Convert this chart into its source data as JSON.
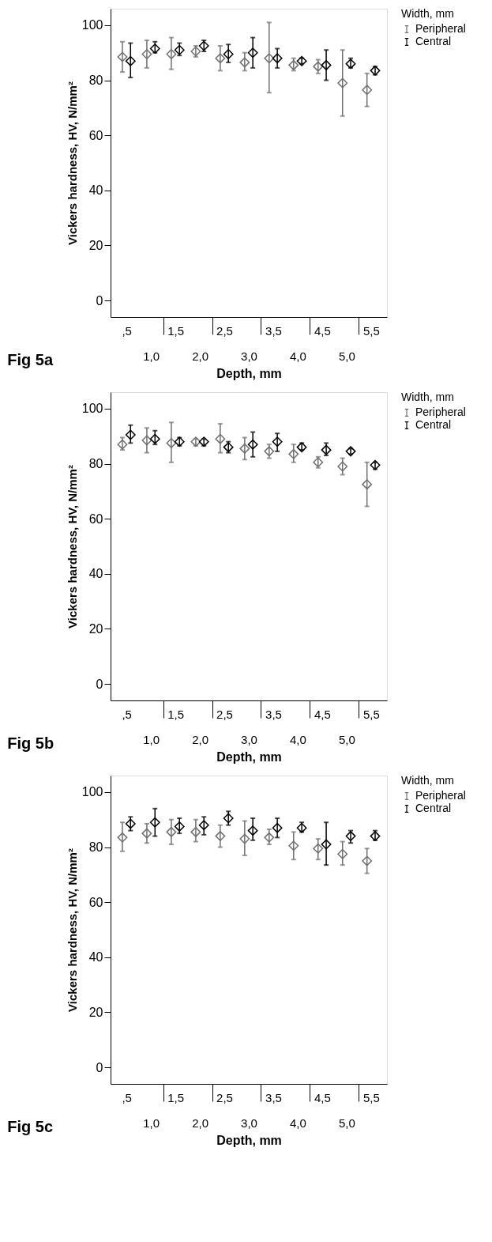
{
  "chart_data": [
    {
      "type": "scatter",
      "title": "Fig 5a",
      "xlabel": "Depth, mm",
      "ylabel": "Vickers hardness, HV, N/mm²",
      "legend_title": "Width, mm",
      "legend": "top right",
      "grid": false,
      "marker": "diamond",
      "categories": [
        ",5",
        "1,0",
        "1,5",
        "2,0",
        "2,5",
        "3,0",
        "3,5",
        "4,0",
        "4,5",
        "5,0",
        "5,5"
      ],
      "ylim": [
        -6,
        106
      ],
      "yticks": [
        0,
        20,
        40,
        60,
        80,
        100
      ],
      "series": [
        {
          "name": "Peripheral",
          "color": "#707070",
          "values": [
            88.5,
            89.5,
            89.5,
            90.5,
            88,
            86.5,
            88,
            85.5,
            85,
            79,
            76.5
          ],
          "errors": [
            [
              83,
              94
            ],
            [
              84.5,
              94.5
            ],
            [
              84,
              95.5
            ],
            [
              88.5,
              92.5
            ],
            [
              83.5,
              92.5
            ],
            [
              83.5,
              90
            ],
            [
              75.5,
              101
            ],
            [
              83.5,
              88
            ],
            [
              82.5,
              87.5
            ],
            [
              67,
              91
            ],
            [
              70.5,
              82.5
            ]
          ]
        },
        {
          "name": "Central",
          "color": "#000000",
          "values": [
            87,
            91.5,
            91,
            92.5,
            89.5,
            90,
            88,
            87,
            85.5,
            86,
            83.5
          ],
          "errors": [
            [
              81,
              93.5
            ],
            [
              90,
              94
            ],
            [
              89,
              93.5
            ],
            [
              90.5,
              94.5
            ],
            [
              86.5,
              93
            ],
            [
              84.5,
              95.5
            ],
            [
              84.5,
              91.5
            ],
            [
              86,
              88
            ],
            [
              80,
              91
            ],
            [
              84.5,
              88
            ],
            [
              82,
              85
            ]
          ]
        }
      ]
    },
    {
      "type": "scatter",
      "title": "Fig 5b",
      "xlabel": "Depth, mm",
      "ylabel": "Vickers hardness, HV, N/mm²",
      "legend_title": "Width, mm",
      "legend": "top right",
      "grid": false,
      "marker": "diamond",
      "categories": [
        ",5",
        "1,0",
        "1,5",
        "2,0",
        "2,5",
        "3,0",
        "3,5",
        "4,0",
        "4,5",
        "5,0",
        "5,5"
      ],
      "ylim": [
        -6,
        106
      ],
      "yticks": [
        0,
        20,
        40,
        60,
        80,
        100
      ],
      "series": [
        {
          "name": "Peripheral",
          "color": "#707070",
          "values": [
            87,
            88.5,
            87.5,
            88,
            89,
            85.5,
            84.5,
            83.5,
            80.5,
            79,
            72.5
          ],
          "errors": [
            [
              85,
              89.5
            ],
            [
              84,
              93
            ],
            [
              80.5,
              95
            ],
            [
              86.5,
              89
            ],
            [
              84,
              94.5
            ],
            [
              81.5,
              89.5
            ],
            [
              82,
              87
            ],
            [
              80.5,
              87
            ],
            [
              78.5,
              82.5
            ],
            [
              76,
              82
            ],
            [
              64.5,
              80.5
            ]
          ]
        },
        {
          "name": "Central",
          "color": "#000000",
          "values": [
            90.5,
            89,
            88,
            88,
            86,
            87,
            88,
            86,
            85,
            84.5,
            79.5
          ],
          "errors": [
            [
              87.5,
              94
            ],
            [
              87,
              92
            ],
            [
              86.5,
              89.5
            ],
            [
              86.5,
              89
            ],
            [
              84,
              88
            ],
            [
              82.5,
              91.5
            ],
            [
              84.5,
              91
            ],
            [
              85,
              87.5
            ],
            [
              83,
              87.5
            ],
            [
              83.5,
              85.5
            ],
            [
              78,
              80.5
            ]
          ]
        }
      ]
    },
    {
      "type": "scatter",
      "title": "Fig 5c",
      "xlabel": "Depth, mm",
      "ylabel": "Vickers hardness, HV, N/mm²",
      "legend_title": "Width, mm",
      "legend": "top right",
      "grid": false,
      "marker": "diamond",
      "categories": [
        ",5",
        "1,0",
        "1,5",
        "2,0",
        "2,5",
        "3,0",
        "3,5",
        "4,0",
        "4,5",
        "5,0",
        "5,5"
      ],
      "ylim": [
        -6,
        106
      ],
      "yticks": [
        0,
        20,
        40,
        60,
        80,
        100
      ],
      "series": [
        {
          "name": "Peripheral",
          "color": "#707070",
          "values": [
            83.5,
            85,
            85.5,
            85.5,
            84,
            83,
            83.5,
            80.5,
            79.5,
            77.5,
            75
          ],
          "errors": [
            [
              78.5,
              89
            ],
            [
              81.5,
              88.5
            ],
            [
              81,
              90
            ],
            [
              82,
              90
            ],
            [
              80,
              88
            ],
            [
              77,
              89.5
            ],
            [
              81,
              86.5
            ],
            [
              75.5,
              85.5
            ],
            [
              75.5,
              83
            ],
            [
              73.5,
              82
            ],
            [
              70.5,
              79.5
            ]
          ]
        },
        {
          "name": "Central",
          "color": "#000000",
          "values": [
            88.5,
            89,
            87.5,
            88,
            90.5,
            86,
            87,
            87,
            81,
            84,
            84
          ],
          "errors": [
            [
              86,
              91
            ],
            [
              84,
              94
            ],
            [
              85,
              90.5
            ],
            [
              84.5,
              91
            ],
            [
              88,
              93
            ],
            [
              82.5,
              90.5
            ],
            [
              83.5,
              90.5
            ],
            [
              85.5,
              89
            ],
            [
              73.5,
              89
            ],
            [
              81.5,
              86
            ],
            [
              82.5,
              86
            ]
          ]
        }
      ]
    }
  ]
}
